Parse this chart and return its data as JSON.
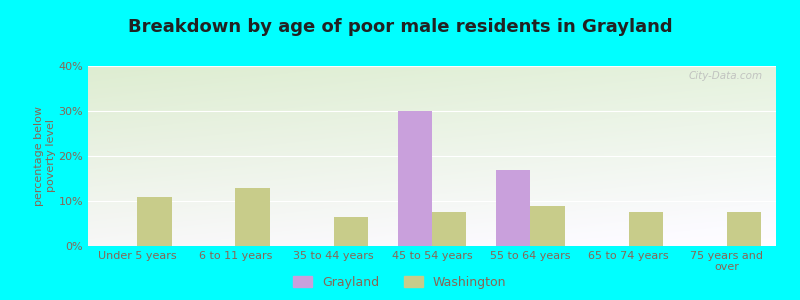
{
  "title": "Breakdown by age of poor male residents in Grayland",
  "categories": [
    "Under 5 years",
    "6 to 11 years",
    "35 to 44 years",
    "45 to 54 years",
    "55 to 64 years",
    "65 to 74 years",
    "75 years and\nover"
  ],
  "grayland_values": [
    0,
    0,
    0,
    30,
    17,
    0,
    0
  ],
  "washington_values": [
    11,
    13,
    6.5,
    7.5,
    9,
    7.5,
    7.5
  ],
  "grayland_color": "#c9a0dc",
  "washington_color": "#c8cc8a",
  "background_outer": "#00ffff",
  "background_inner_topleft": "#e8f0d8",
  "background_inner_bottomright": "#f5f8f0",
  "ylabel": "percentage below\npoverty level",
  "ylim": [
    0,
    40
  ],
  "yticks": [
    0,
    10,
    20,
    30,
    40
  ],
  "ytick_labels": [
    "0%",
    "10%",
    "20%",
    "30%",
    "40%"
  ],
  "bar_width": 0.35,
  "title_fontsize": 13,
  "axis_fontsize": 8,
  "legend_fontsize": 9,
  "watermark": "City-Data.com",
  "grid_color": "#ddddcc",
  "text_color": "#886655"
}
